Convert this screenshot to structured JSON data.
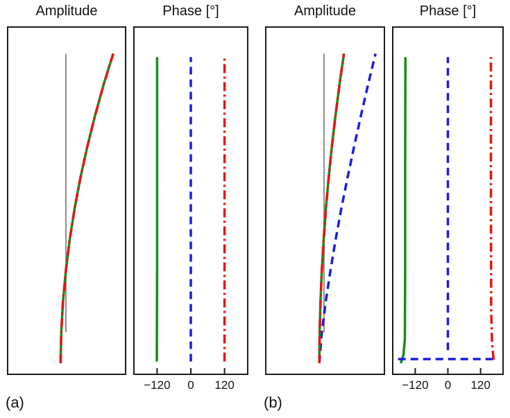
{
  "figure": {
    "panel_labels": {
      "a": "(a)",
      "b": "(b)"
    },
    "background": "#ffffff",
    "axis_color": "#1c1c1c"
  },
  "chart_data": [
    {
      "id": "a-amplitude",
      "type": "line",
      "title": "Amplitude",
      "xlim": [
        0,
        1
      ],
      "ylim": [
        0,
        1
      ],
      "xticks": [],
      "xticklabels": [],
      "series": [
        {
          "name": "reference-line-gray",
          "color": "#909090",
          "style": "solid",
          "width": 2,
          "segments": [
            [
              [
                0.494,
                0.12
              ],
              [
                0.494,
                0.925
              ]
            ]
          ]
        },
        {
          "name": "mode-shape-green-solid",
          "color": "#1a8c1a",
          "style": "solid",
          "width": 3.5,
          "segments": [
            [
              [
                0.448,
                0.03
              ],
              [
                0.454,
                0.12
              ],
              [
                0.469,
                0.209
              ],
              [
                0.494,
                0.299
              ],
              [
                0.527,
                0.388
              ],
              [
                0.569,
                0.478
              ],
              [
                0.619,
                0.567
              ],
              [
                0.678,
                0.657
              ],
              [
                0.744,
                0.746
              ],
              [
                0.818,
                0.836
              ],
              [
                0.9,
                0.925
              ]
            ]
          ]
        },
        {
          "name": "mode-shape-red-dashdot",
          "color": "#e3170f",
          "style": "dashdot",
          "width": 3.5,
          "segments": [
            [
              [
                0.448,
                0.03
              ],
              [
                0.454,
                0.12
              ],
              [
                0.469,
                0.209
              ],
              [
                0.494,
                0.299
              ],
              [
                0.527,
                0.388
              ],
              [
                0.569,
                0.478
              ],
              [
                0.619,
                0.567
              ],
              [
                0.678,
                0.657
              ],
              [
                0.744,
                0.746
              ],
              [
                0.818,
                0.836
              ],
              [
                0.9,
                0.925
              ]
            ]
          ]
        }
      ]
    },
    {
      "id": "a-phase",
      "type": "line",
      "title": "Phase [°]",
      "xlim": [
        -200,
        200
      ],
      "ylim": [
        0,
        1
      ],
      "xticks": [
        -120,
        0,
        120
      ],
      "xticklabels": [
        "−120",
        "0",
        "120"
      ],
      "series": [
        {
          "name": "phase-green-solid",
          "color": "#1a8c1a",
          "style": "solid",
          "width": 3.5,
          "segments": [
            [
              [
                -121,
                0.035
              ],
              [
                -120,
                0.3
              ],
              [
                -120,
                0.915
              ]
            ]
          ]
        },
        {
          "name": "phase-blue-dashed",
          "color": "#1c1ce0",
          "style": "dashed",
          "width": 3.5,
          "segments": [
            [
              [
                0,
                0.035
              ],
              [
                0,
                0.915
              ]
            ]
          ]
        },
        {
          "name": "phase-red-dashdot",
          "color": "#e3170f",
          "style": "dashdot",
          "width": 3.5,
          "segments": [
            [
              [
                120,
                0.035
              ],
              [
                120,
                0.915
              ]
            ]
          ]
        }
      ]
    },
    {
      "id": "b-amplitude",
      "type": "line",
      "title": "Amplitude",
      "xlim": [
        0,
        1
      ],
      "ylim": [
        0,
        1
      ],
      "xticks": [],
      "xticklabels": [],
      "series": [
        {
          "name": "reference-line-gray",
          "color": "#909090",
          "style": "solid",
          "width": 2,
          "segments": [
            [
              [
                0.491,
                0.12
              ],
              [
                0.491,
                0.925
              ]
            ]
          ]
        },
        {
          "name": "mode-shape-blue-dashed",
          "color": "#1c1ce0",
          "style": "dashed",
          "width": 3.5,
          "segments": [
            [
              [
                0.451,
                0.03
              ],
              [
                0.473,
                0.12
              ],
              [
                0.506,
                0.209
              ],
              [
                0.546,
                0.299
              ],
              [
                0.59,
                0.388
              ],
              [
                0.639,
                0.478
              ],
              [
                0.692,
                0.567
              ],
              [
                0.748,
                0.657
              ],
              [
                0.806,
                0.746
              ],
              [
                0.867,
                0.836
              ],
              [
                0.931,
                0.925
              ]
            ]
          ]
        },
        {
          "name": "mode-shape-green-solid",
          "color": "#1a8c1a",
          "style": "solid",
          "width": 3.5,
          "segments": [
            [
              [
                0.451,
                0.03
              ],
              [
                0.454,
                0.12
              ],
              [
                0.461,
                0.209
              ],
              [
                0.472,
                0.299
              ],
              [
                0.488,
                0.388
              ],
              [
                0.507,
                0.478
              ],
              [
                0.531,
                0.567
              ],
              [
                0.558,
                0.657
              ],
              [
                0.589,
                0.746
              ],
              [
                0.623,
                0.836
              ],
              [
                0.661,
                0.925
              ]
            ]
          ]
        },
        {
          "name": "mode-shape-red-dashdot",
          "color": "#e3170f",
          "style": "dashdot",
          "width": 3.5,
          "segments": [
            [
              [
                0.451,
                0.03
              ],
              [
                0.454,
                0.12
              ],
              [
                0.461,
                0.209
              ],
              [
                0.472,
                0.299
              ],
              [
                0.488,
                0.388
              ],
              [
                0.507,
                0.478
              ],
              [
                0.531,
                0.567
              ],
              [
                0.558,
                0.657
              ],
              [
                0.589,
                0.746
              ],
              [
                0.623,
                0.836
              ],
              [
                0.661,
                0.925
              ]
            ]
          ]
        }
      ]
    },
    {
      "id": "b-phase",
      "type": "line",
      "title": "Phase [°]",
      "xlim": [
        -200,
        200
      ],
      "ylim": [
        0,
        1
      ],
      "xticks": [
        -120,
        0,
        120
      ],
      "xticklabels": [
        "−120",
        "0",
        "120"
      ],
      "series": [
        {
          "name": "phase-green-solid",
          "color": "#1a8c1a",
          "style": "solid",
          "width": 3.5,
          "segments": [
            [
              [
                -173,
                0.03
              ],
              [
                -163,
                0.055
              ],
              [
                -158,
                0.1
              ],
              [
                -157,
                0.3
              ],
              [
                -157,
                0.6
              ],
              [
                -156,
                0.915
              ]
            ]
          ]
        },
        {
          "name": "phase-blue-dashed",
          "color": "#1c1ce0",
          "style": "dashed",
          "width": 3.5,
          "segments": [
            [
              [
                0,
                0.068
              ],
              [
                0,
                0.915
              ]
            ],
            [
              [
                -183,
                0.042
              ],
              [
                178,
                0.042
              ]
            ]
          ]
        },
        {
          "name": "phase-red-dashdot",
          "color": "#e3170f",
          "style": "dashdot",
          "width": 3.5,
          "segments": [
            [
              [
                168,
                0.04
              ],
              [
                162,
                0.09
              ],
              [
                159,
                0.18
              ],
              [
                158,
                0.5
              ],
              [
                158,
                0.915
              ]
            ]
          ]
        }
      ]
    }
  ]
}
